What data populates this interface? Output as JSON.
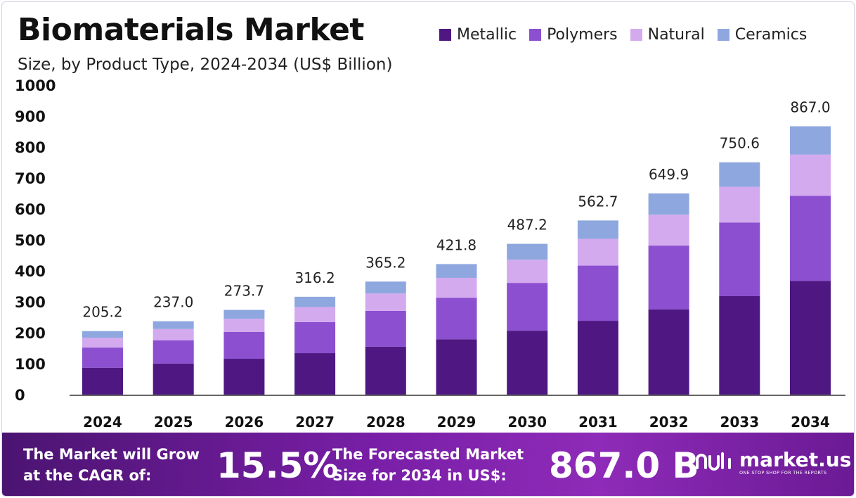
{
  "header": {
    "title": "Biomaterials Market",
    "subtitle": "Size, by Product Type, 2024-2034 (US$ Billion)"
  },
  "colors": {
    "Metallic": "#4e1782",
    "Polymers": "#8b4fd0",
    "Natural": "#d4aaef",
    "Ceramics": "#8ea7df"
  },
  "chart_data": {
    "type": "bar",
    "stacked": true,
    "categories": [
      "2024",
      "2025",
      "2026",
      "2027",
      "2028",
      "2029",
      "2030",
      "2031",
      "2032",
      "2033",
      "2034"
    ],
    "series": [
      {
        "name": "Metallic",
        "values": [
          87.0,
          100.5,
          116.0,
          134.0,
          154.8,
          178.8,
          206.5,
          238.5,
          275.5,
          318.2,
          367.5
        ]
      },
      {
        "name": "Polymers",
        "values": [
          65.0,
          75.1,
          86.8,
          100.2,
          115.8,
          133.7,
          154.5,
          178.4,
          206.0,
          238.0,
          274.9
        ]
      },
      {
        "name": "Natural",
        "values": [
          31.5,
          36.4,
          42.0,
          48.5,
          56.1,
          64.8,
          74.8,
          86.4,
          99.8,
          115.2,
          133.0
        ]
      },
      {
        "name": "Ceramics",
        "values": [
          21.7,
          25.0,
          28.9,
          33.5,
          38.5,
          44.5,
          51.4,
          59.4,
          68.6,
          79.2,
          91.6
        ]
      }
    ],
    "totals": [
      "205.2",
      "237.0",
      "273.7",
      "316.2",
      "365.2",
      "421.8",
      "487.2",
      "562.7",
      "649.9",
      "750.6",
      "867.0"
    ],
    "yticks": [
      "0",
      "100",
      "200",
      "300",
      "400",
      "500",
      "600",
      "700",
      "800",
      "900",
      "1000"
    ],
    "ylim": [
      0,
      1000
    ],
    "legend_position": "top-right",
    "grid": false
  },
  "footer": {
    "cagr_label_line1": "The Market will Grow",
    "cagr_label_line2": "at the CAGR of:",
    "cagr_value": "15.5%",
    "forecast_label_line1": "The Forecasted Market",
    "forecast_label_line2": "Size for 2034 in US$:",
    "forecast_value": "867.0 B",
    "brand_name": "market.us",
    "brand_tagline": "ONE STOP SHOP FOR THE REPORTS"
  }
}
